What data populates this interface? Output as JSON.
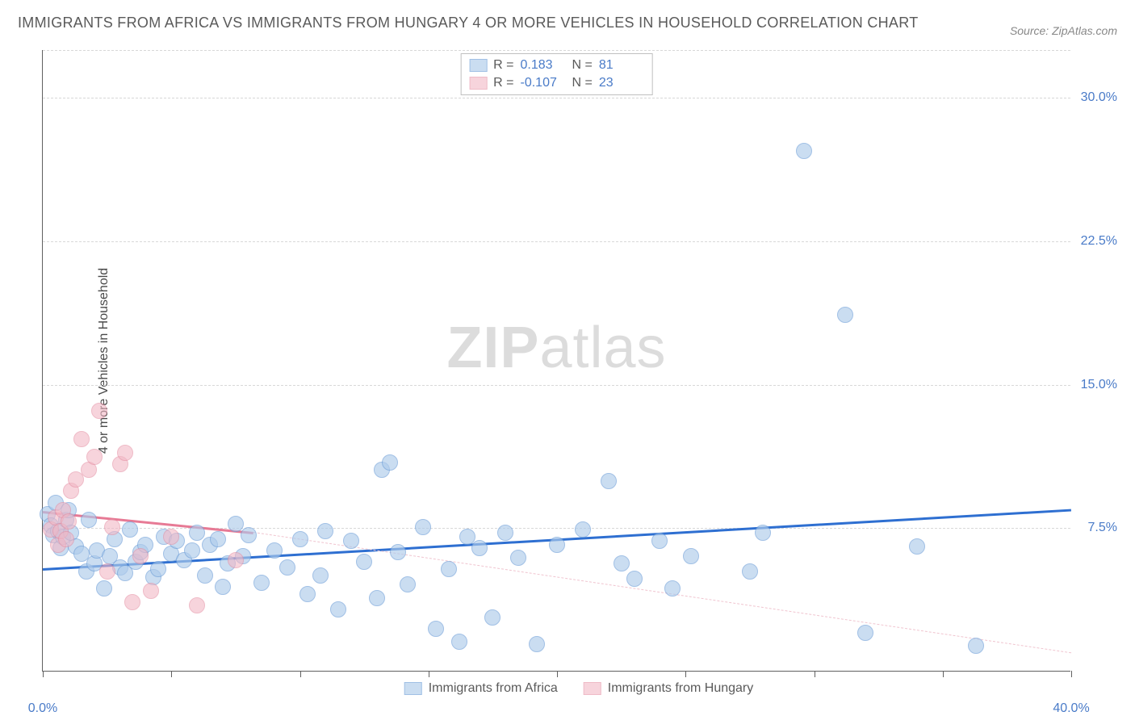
{
  "title": "IMMIGRANTS FROM AFRICA VS IMMIGRANTS FROM HUNGARY 4 OR MORE VEHICLES IN HOUSEHOLD CORRELATION CHART",
  "source": "Source: ZipAtlas.com",
  "ylabel": "4 or more Vehicles in Household",
  "watermark_a": "ZIP",
  "watermark_b": "atlas",
  "chart": {
    "type": "scatter",
    "xlim": [
      0,
      40
    ],
    "ylim": [
      0,
      32.5
    ],
    "xticks_major": [
      0,
      10,
      20,
      30,
      40
    ],
    "xticks_minor": [
      5,
      15,
      25,
      35
    ],
    "yticks": [
      7.5,
      15.0,
      22.5,
      30.0
    ],
    "xtick_labels": {
      "0": "0.0%",
      "40": "40.0%"
    },
    "ytick_labels": {
      "7.5": "7.5%",
      "15.0": "15.0%",
      "22.5": "22.5%",
      "30.0": "30.0%"
    },
    "grid_color": "#d8d8d8",
    "axis_color": "#606060",
    "background_color": "#ffffff",
    "tick_label_color": "#4a7bc8",
    "tick_label_fontsize": 16
  },
  "series": [
    {
      "name": "Immigrants from Africa",
      "fill": "#aecbeb",
      "stroke": "#6f9fd8",
      "fill_opacity": 0.65,
      "marker_radius": 10,
      "R": "0.183",
      "N": "81",
      "regression": {
        "x0": 0,
        "y0": 5.4,
        "x1": 40,
        "y1": 8.5,
        "color": "#2e6fd1",
        "width": 3,
        "style": "solid",
        "dashed_extension": false
      },
      "points": [
        [
          0.2,
          8.2
        ],
        [
          0.3,
          7.6
        ],
        [
          0.4,
          7.1
        ],
        [
          0.5,
          8.8
        ],
        [
          0.6,
          7.3
        ],
        [
          0.7,
          6.4
        ],
        [
          0.8,
          7.0
        ],
        [
          0.9,
          7.9
        ],
        [
          1.0,
          8.4
        ],
        [
          1.1,
          7.2
        ],
        [
          1.3,
          6.5
        ],
        [
          1.5,
          6.1
        ],
        [
          1.7,
          5.2
        ],
        [
          1.8,
          7.9
        ],
        [
          2.0,
          5.6
        ],
        [
          2.1,
          6.3
        ],
        [
          2.4,
          4.3
        ],
        [
          2.6,
          6.0
        ],
        [
          2.8,
          6.9
        ],
        [
          3.0,
          5.4
        ],
        [
          3.2,
          5.1
        ],
        [
          3.4,
          7.4
        ],
        [
          3.6,
          5.7
        ],
        [
          3.8,
          6.2
        ],
        [
          4.0,
          6.6
        ],
        [
          4.3,
          4.9
        ],
        [
          4.5,
          5.3
        ],
        [
          4.7,
          7.0
        ],
        [
          5.0,
          6.1
        ],
        [
          5.2,
          6.8
        ],
        [
          5.5,
          5.8
        ],
        [
          5.8,
          6.3
        ],
        [
          6.0,
          7.2
        ],
        [
          6.3,
          5.0
        ],
        [
          6.5,
          6.6
        ],
        [
          6.8,
          6.9
        ],
        [
          7.0,
          4.4
        ],
        [
          7.2,
          5.6
        ],
        [
          7.5,
          7.7
        ],
        [
          7.8,
          6.0
        ],
        [
          8.0,
          7.1
        ],
        [
          8.5,
          4.6
        ],
        [
          9.0,
          6.3
        ],
        [
          9.5,
          5.4
        ],
        [
          10.0,
          6.9
        ],
        [
          10.3,
          4.0
        ],
        [
          10.8,
          5.0
        ],
        [
          11.0,
          7.3
        ],
        [
          11.5,
          3.2
        ],
        [
          12.0,
          6.8
        ],
        [
          12.5,
          5.7
        ],
        [
          13.0,
          3.8
        ],
        [
          13.2,
          10.5
        ],
        [
          13.5,
          10.9
        ],
        [
          13.8,
          6.2
        ],
        [
          14.2,
          4.5
        ],
        [
          14.8,
          7.5
        ],
        [
          15.3,
          2.2
        ],
        [
          15.8,
          5.3
        ],
        [
          16.2,
          1.5
        ],
        [
          16.5,
          7.0
        ],
        [
          17.0,
          6.4
        ],
        [
          17.5,
          2.8
        ],
        [
          18.0,
          7.2
        ],
        [
          18.5,
          5.9
        ],
        [
          19.2,
          1.4
        ],
        [
          20.0,
          6.6
        ],
        [
          21.0,
          7.4
        ],
        [
          22.0,
          9.9
        ],
        [
          22.5,
          5.6
        ],
        [
          23.0,
          4.8
        ],
        [
          24.0,
          6.8
        ],
        [
          24.5,
          4.3
        ],
        [
          25.2,
          6.0
        ],
        [
          27.5,
          5.2
        ],
        [
          28.0,
          7.2
        ],
        [
          29.6,
          27.2
        ],
        [
          31.2,
          18.6
        ],
        [
          32.0,
          2.0
        ],
        [
          34.0,
          6.5
        ],
        [
          36.3,
          1.3
        ]
      ]
    },
    {
      "name": "Immigrants from Hungary",
      "fill": "#f2b8c6",
      "stroke": "#e58fa3",
      "fill_opacity": 0.6,
      "marker_radius": 10,
      "R": "-0.107",
      "N": "23",
      "regression": {
        "x0": 0,
        "y0": 8.4,
        "x1": 8.2,
        "y1": 7.3,
        "color": "#e77a95",
        "width": 3,
        "style": "solid",
        "dashed_extension": true,
        "x2": 40,
        "y2": 1.0,
        "dash_color": "#f0c4cf"
      },
      "points": [
        [
          0.3,
          7.4
        ],
        [
          0.5,
          8.0
        ],
        [
          0.6,
          6.6
        ],
        [
          0.7,
          7.3
        ],
        [
          0.8,
          8.4
        ],
        [
          0.9,
          6.9
        ],
        [
          1.0,
          7.8
        ],
        [
          1.1,
          9.4
        ],
        [
          1.3,
          10.0
        ],
        [
          1.5,
          12.1
        ],
        [
          1.8,
          10.5
        ],
        [
          2.0,
          11.2
        ],
        [
          2.2,
          13.6
        ],
        [
          2.5,
          5.2
        ],
        [
          2.7,
          7.5
        ],
        [
          3.0,
          10.8
        ],
        [
          3.2,
          11.4
        ],
        [
          3.5,
          3.6
        ],
        [
          3.8,
          6.0
        ],
        [
          4.2,
          4.2
        ],
        [
          5.0,
          7.0
        ],
        [
          6.0,
          3.4
        ],
        [
          7.5,
          5.8
        ]
      ]
    }
  ],
  "legend_top": {
    "rows": [
      {
        "swatch_series": 0,
        "r_label": "R =",
        "n_label": "N ="
      },
      {
        "swatch_series": 1,
        "r_label": "R =",
        "n_label": "N ="
      }
    ]
  },
  "legend_bottom": [
    {
      "series": 0
    },
    {
      "series": 1
    }
  ]
}
